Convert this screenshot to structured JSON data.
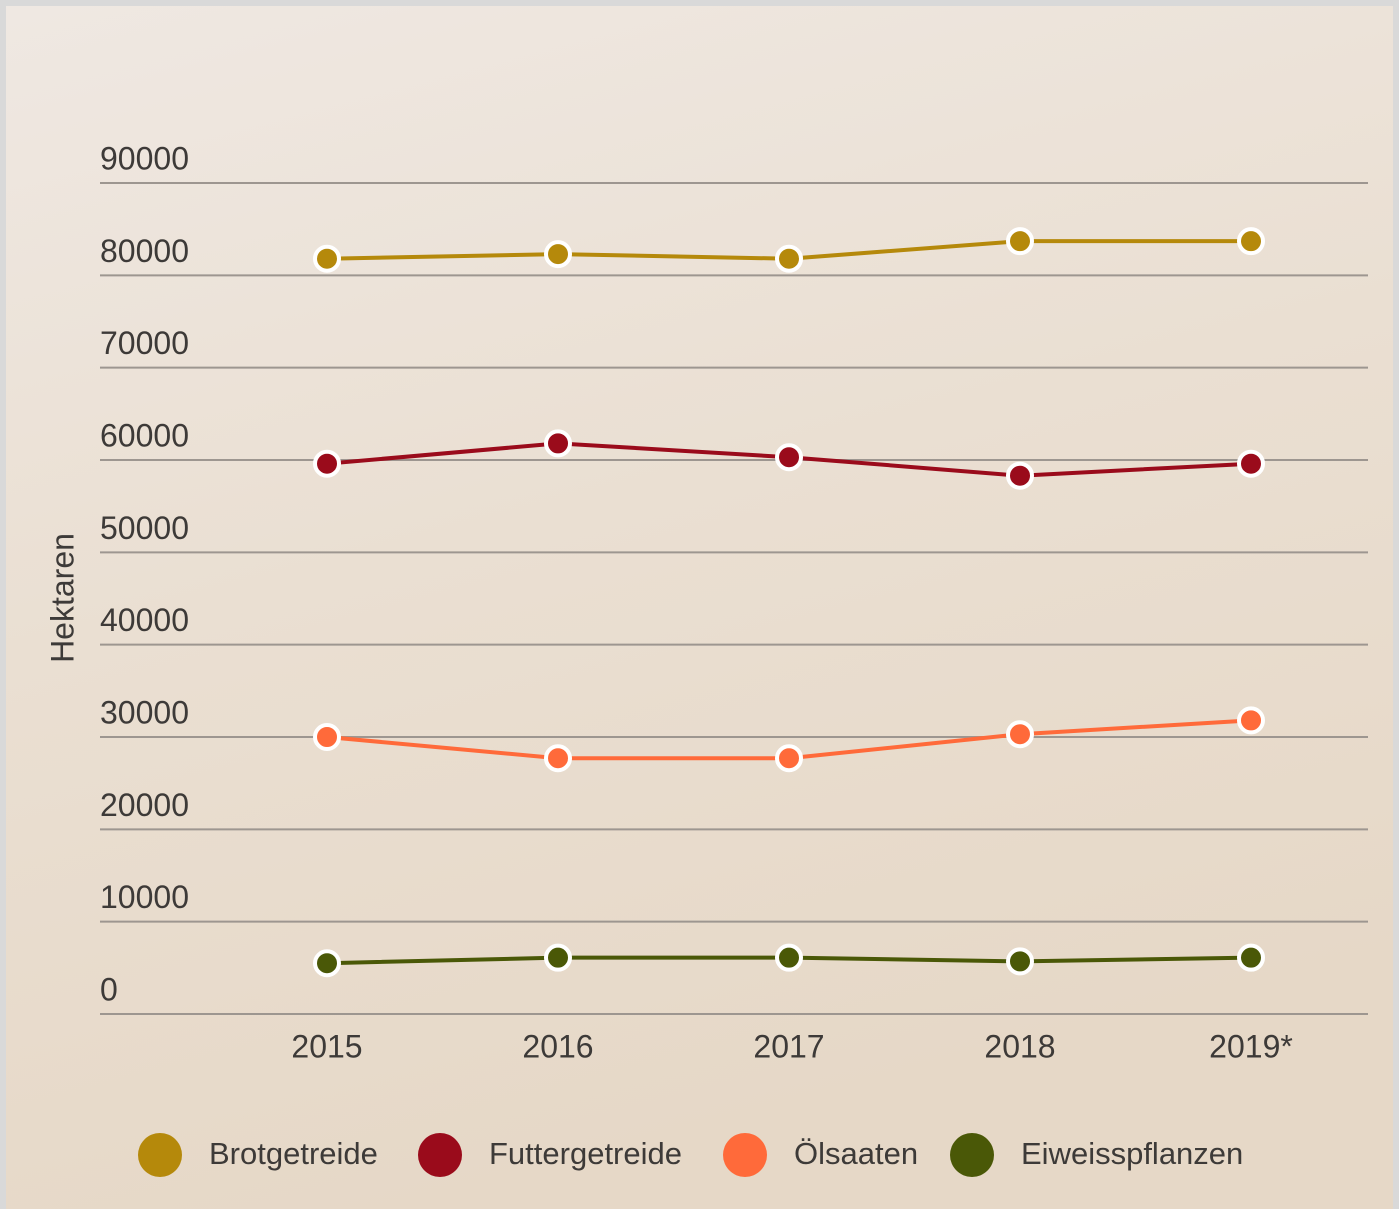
{
  "chart_data": {
    "type": "line",
    "y_label": "Hektaren",
    "categories": [
      "2015",
      "2016",
      "2017",
      "2018",
      "2019*"
    ],
    "series": [
      {
        "name": "Brotgetreide",
        "color": "#b5890b",
        "values": [
          81800,
          82300,
          81800,
          83700,
          83700
        ]
      },
      {
        "name": "Futtergetreide",
        "color": "#9a0b1b",
        "values": [
          59600,
          61800,
          60300,
          58300,
          59600
        ]
      },
      {
        "name": "Ölsaaten",
        "color": "#ff6a3a",
        "values": [
          30000,
          27700,
          27700,
          30300,
          31800
        ]
      },
      {
        "name": "Eiweisspflanzen",
        "color": "#4a5807",
        "values": [
          5500,
          6100,
          6100,
          5700,
          6100
        ]
      }
    ],
    "ylim": [
      0,
      90000
    ],
    "yticks": [
      0,
      10000,
      20000,
      30000,
      40000,
      50000,
      60000,
      70000,
      80000,
      90000
    ],
    "grid": true
  }
}
